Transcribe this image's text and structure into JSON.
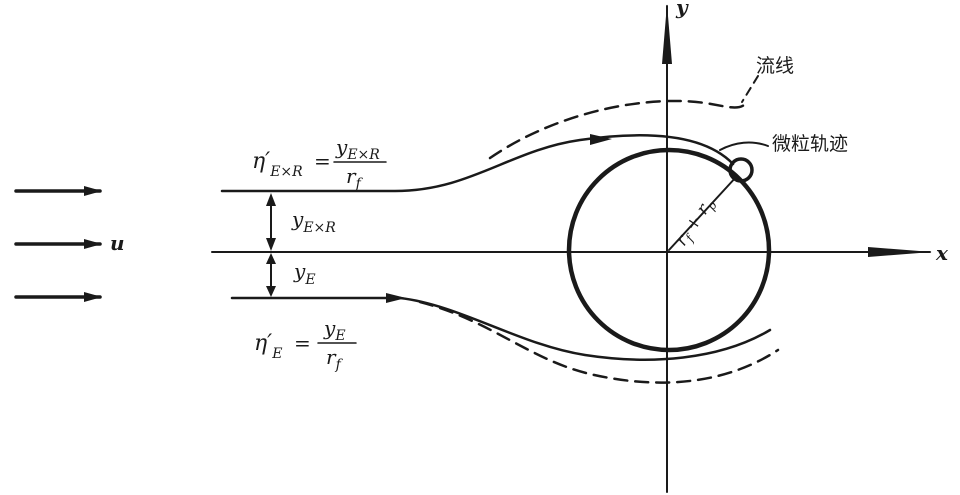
{
  "labels": {
    "streamline": "流线",
    "particle_trajectory": "微粒轨迹",
    "axis_x": "x",
    "axis_y": "y",
    "flow_velocity": "u",
    "radius_sum": "r_f + r_p"
  },
  "formulas": {
    "eta_exr": {
      "lhs_symbol": "η′",
      "lhs_sub": "E×R",
      "equals": "=",
      "numerator": "y",
      "numerator_sub": "E×R",
      "denominator": "r",
      "denominator_sub": "f"
    },
    "eta_e": {
      "lhs_symbol": "η′",
      "lhs_sub": "E",
      "equals": "=",
      "numerator": "y",
      "numerator_sub": "E",
      "denominator": "r",
      "denominator_sub": "f"
    }
  },
  "dimensions": {
    "y_exr": {
      "symbol": "y",
      "sub": "E×R"
    },
    "y_e": {
      "symbol": "y",
      "sub": "E"
    }
  }
}
